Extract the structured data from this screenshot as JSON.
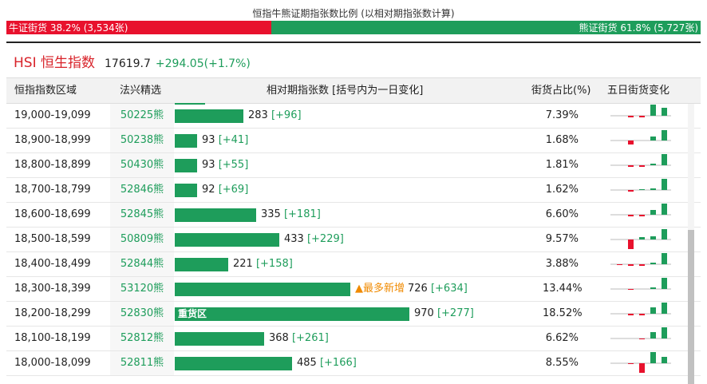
{
  "ratio": {
    "title": "恒指牛熊证期指张数比例 (以相对期指张数计算)",
    "bull_label": "牛证街货 38.2% (3,534张)",
    "bull_fraction": 0.382,
    "bear_label": "熊证街货 61.8% (5,727张)",
    "bull_color": "#e8112d",
    "bear_color": "#1e9d5b"
  },
  "index": {
    "name": "HSI 恒生指数",
    "price": "17619.7",
    "change": "+294.05(+1.7%)"
  },
  "table": {
    "headers": {
      "range": "恒指指数区域",
      "code": "法兴精选",
      "contracts": "相对期指张数 [括号内为一日变化]",
      "share": "街货占比(%)",
      "five_day": "五日街货变化"
    },
    "bar_scale_max": 970,
    "rows": [
      {
        "range": "19,000-19,099",
        "code": "50225熊",
        "contracts": 283,
        "count": "283",
        "delta": "[+96]",
        "share": "7.39%",
        "badge": "",
        "inside_label": "",
        "spark": [
          0,
          -2,
          -2,
          14,
          10
        ]
      },
      {
        "range": "18,900-18,999",
        "code": "50238熊",
        "contracts": 93,
        "count": "93",
        "delta": "[+41]",
        "share": "1.68%",
        "badge": "",
        "inside_label": "",
        "spark": [
          0,
          -5,
          0,
          5,
          13
        ]
      },
      {
        "range": "18,800-18,899",
        "code": "50430熊",
        "contracts": 93,
        "count": "93",
        "delta": "[+55]",
        "share": "1.81%",
        "badge": "",
        "inside_label": "",
        "spark": [
          0,
          -2,
          -2,
          2,
          14
        ]
      },
      {
        "range": "18,700-18,799",
        "code": "52846熊",
        "contracts": 92,
        "count": "92",
        "delta": "[+69]",
        "share": "1.62%",
        "badge": "",
        "inside_label": "",
        "spark": [
          0,
          -2,
          1,
          2,
          14
        ]
      },
      {
        "range": "18,600-18,699",
        "code": "52845熊",
        "contracts": 335,
        "count": "335",
        "delta": "[+181]",
        "share": "6.60%",
        "badge": "",
        "inside_label": "",
        "spark": [
          0,
          -2,
          -2,
          6,
          14
        ]
      },
      {
        "range": "18,500-18,599",
        "code": "50809熊",
        "contracts": 433,
        "count": "433",
        "delta": "[+229]",
        "share": "9.57%",
        "badge": "",
        "inside_label": "",
        "spark": [
          0,
          -12,
          3,
          4,
          13
        ]
      },
      {
        "range": "18,400-18,499",
        "code": "52844熊",
        "contracts": 221,
        "count": "221",
        "delta": "[+158]",
        "share": "3.88%",
        "badge": "",
        "inside_label": "",
        "spark": [
          -1,
          -2,
          -2,
          2,
          14
        ]
      },
      {
        "range": "18,300-18,399",
        "code": "53120熊",
        "contracts": 726,
        "count": "726",
        "delta": "[+634]",
        "share": "13.44%",
        "badge": "▲最多新增",
        "inside_label": "",
        "spark": [
          0,
          -1,
          0,
          2,
          14
        ]
      },
      {
        "range": "18,200-18,299",
        "code": "52830熊",
        "contracts": 970,
        "count": "970",
        "delta": "[+277]",
        "share": "18.52%",
        "badge": "",
        "inside_label": "重货区",
        "spark": [
          0,
          -2,
          -2,
          8,
          14
        ]
      },
      {
        "range": "18,100-18,199",
        "code": "52812熊",
        "contracts": 368,
        "count": "368",
        "delta": "[+261]",
        "share": "6.62%",
        "badge": "",
        "inside_label": "",
        "spark": [
          0,
          0,
          -1,
          8,
          14
        ]
      },
      {
        "range": "18,000-18,099",
        "code": "52811熊",
        "contracts": 485,
        "count": "485",
        "delta": "[+166]",
        "share": "8.55%",
        "badge": "",
        "inside_label": "",
        "spark": [
          0,
          -1,
          -12,
          14,
          8
        ]
      }
    ]
  },
  "colors": {
    "positive": "#1e9d5b",
    "negative": "#e8112d",
    "badge": "#f08a00"
  }
}
